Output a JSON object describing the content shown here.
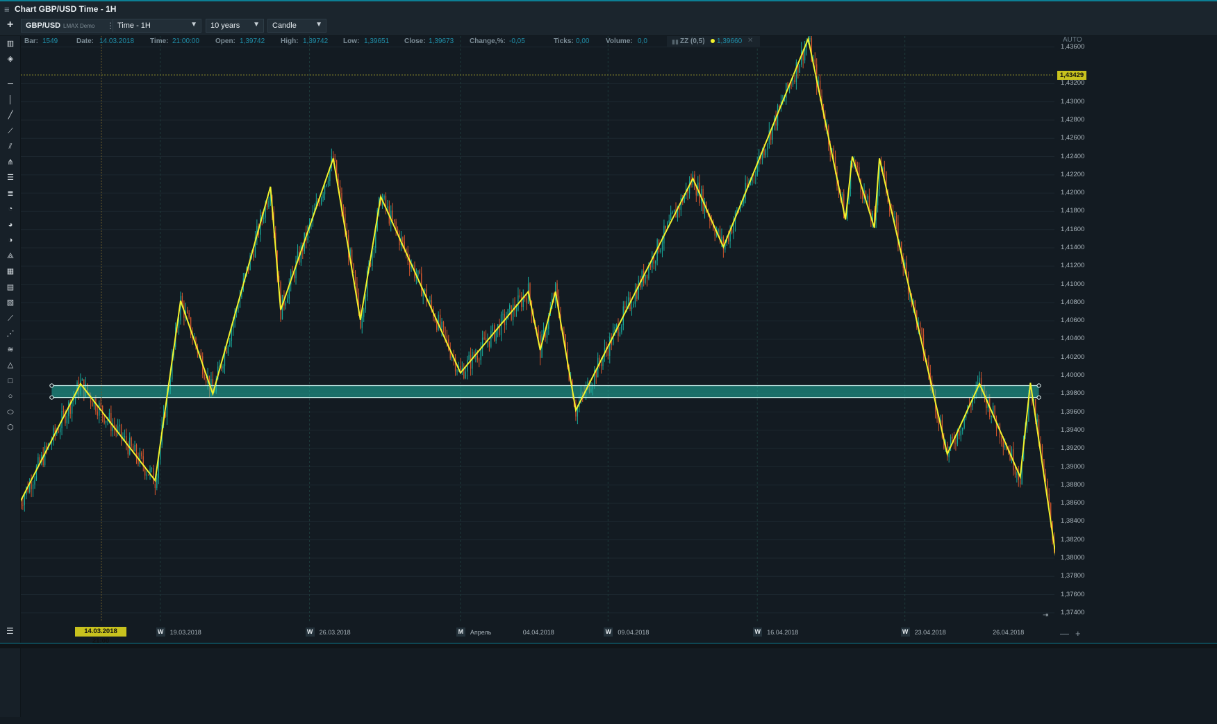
{
  "window": {
    "title": "Chart GBP/USD Time - 1H"
  },
  "toolbar": {
    "symbol": "GBP/USD",
    "broker": "LMAX Demo",
    "timeframe": "Time - 1H",
    "period": "10 years",
    "chart_type": "Candle"
  },
  "infobar": {
    "bar_label": "Bar:",
    "bar_value": "1549",
    "date_label": "Date:",
    "date_value": "14.03.2018",
    "time_label": "Time:",
    "time_value": "21:00:00",
    "open_label": "Open:",
    "open_value": "1,39742",
    "high_label": "High:",
    "high_value": "1,39742",
    "low_label": "Low:",
    "low_value": "1,39651",
    "close_label": "Close:",
    "close_value": "1,39673",
    "change_label": "Change,%:",
    "change_value": "-0,05",
    "ticks_label": "Ticks:",
    "ticks_value": "0,00",
    "volume_label": "Volume:",
    "volume_value": "0,0"
  },
  "indicator": {
    "name": "ZZ (0,5)",
    "value": "1,39660",
    "color": "#f2f22c"
  },
  "axis": {
    "auto_label": "AUTO",
    "current_price": "1,43429",
    "cursor_date": "14.03.2018 21:00"
  },
  "colors": {
    "bull": "#17a89a",
    "bear": "#d2552c",
    "zigzag": "#f2f22c",
    "zone_fill": "#20b3a3",
    "zone_edge": "#c9f4ef",
    "background": "#131c23"
  },
  "chart_data": {
    "type": "candlestick",
    "symbol": "GBP/USD",
    "timeframe": "1H",
    "ylim": [
      1.373,
      1.4372
    ],
    "yticks": [
      "1,43600",
      "1,43200",
      "1,43000",
      "1,42800",
      "1,42600",
      "1,42400",
      "1,42200",
      "1,42000",
      "1,41800",
      "1,41600",
      "1,41400",
      "1,41200",
      "1,41000",
      "1,40800",
      "1,40600",
      "1,40400",
      "1,40200",
      "1,40000",
      "1,39800",
      "1,39600",
      "1,39400",
      "1,39200",
      "1,39000",
      "1,38800",
      "1,38600",
      "1,38400",
      "1,38200",
      "1,38000",
      "1,37800",
      "1,37600",
      "1,37400"
    ],
    "x_labels": [
      {
        "badge": "",
        "text": "14.03.2018 21:00",
        "bar": 31
      },
      {
        "badge": "W",
        "text": "19.03.2018",
        "bar": 83
      },
      {
        "badge": "W",
        "text": "26.03.2018",
        "bar": 171
      },
      {
        "badge": "M",
        "text": "Апрель",
        "bar": 260
      },
      {
        "badge": "",
        "text": "04.04.2018",
        "bar": 305
      },
      {
        "badge": "W",
        "text": "09.04.2018",
        "bar": 347
      },
      {
        "badge": "W",
        "text": "16.04.2018",
        "bar": 435
      },
      {
        "badge": "W",
        "text": "23.04.2018",
        "bar": 522
      },
      {
        "badge": "",
        "text": "26.04.2018",
        "bar": 582
      }
    ],
    "bars_total": 612,
    "zigzag": [
      {
        "bar": 0,
        "price": 1.386
      },
      {
        "bar": 36,
        "price": 1.3991
      },
      {
        "bar": 80,
        "price": 1.3885
      },
      {
        "bar": 95,
        "price": 1.4082
      },
      {
        "bar": 114,
        "price": 1.398
      },
      {
        "bar": 148,
        "price": 1.4207
      },
      {
        "bar": 154,
        "price": 1.4072
      },
      {
        "bar": 185,
        "price": 1.4238
      },
      {
        "bar": 201,
        "price": 1.4061
      },
      {
        "bar": 213,
        "price": 1.4196
      },
      {
        "bar": 260,
        "price": 1.4003
      },
      {
        "bar": 300,
        "price": 1.4092
      },
      {
        "bar": 307,
        "price": 1.4028
      },
      {
        "bar": 316,
        "price": 1.4092
      },
      {
        "bar": 328,
        "price": 1.3962
      },
      {
        "bar": 397,
        "price": 1.4216
      },
      {
        "bar": 415,
        "price": 1.4141
      },
      {
        "bar": 465,
        "price": 1.4369
      },
      {
        "bar": 487,
        "price": 1.4171
      },
      {
        "bar": 491,
        "price": 1.424
      },
      {
        "bar": 504,
        "price": 1.4162
      },
      {
        "bar": 507,
        "price": 1.4238
      },
      {
        "bar": 547,
        "price": 1.3914
      },
      {
        "bar": 566,
        "price": 1.3991
      },
      {
        "bar": 590,
        "price": 1.3889
      },
      {
        "bar": 596,
        "price": 1.3992
      },
      {
        "bar": 611,
        "price": 1.3802
      }
    ],
    "support_zone": {
      "from_bar": 19,
      "to_bar": 601,
      "low": 1.3976,
      "high": 1.3989
    }
  }
}
